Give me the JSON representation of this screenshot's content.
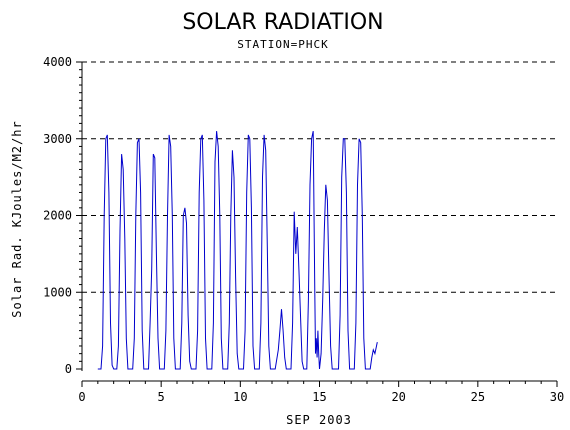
{
  "chart_data": {
    "type": "line",
    "title": "SOLAR RADIATION",
    "subtitle": "STATION=PHCK",
    "xlabel": "SEP 2003",
    "ylabel": "Solar Rad. KJoules/M2/hr",
    "xlim": [
      0,
      30
    ],
    "ylim": [
      0,
      4000
    ],
    "x_ticks": [
      0,
      5,
      10,
      15,
      20,
      25,
      30
    ],
    "x_tick_labels": [
      "0",
      "5",
      "10",
      "15",
      "20",
      "25",
      "30"
    ],
    "y_ticks": [
      0,
      1000,
      2000,
      3000,
      4000
    ],
    "y_tick_labels": [
      "0",
      "1000",
      "2000",
      "3000",
      "4000"
    ],
    "grid": "horizontal dashed",
    "legend": "none",
    "colors": {
      "series": "#0000cc",
      "axis": "#000000",
      "grid": "#000000"
    },
    "series": [
      {
        "values": [
          [
            1.0,
            0
          ],
          [
            1.2,
            0
          ],
          [
            1.3,
            300
          ],
          [
            1.4,
            2000
          ],
          [
            1.5,
            3000
          ],
          [
            1.6,
            3050
          ],
          [
            1.7,
            2300
          ],
          [
            1.8,
            600
          ],
          [
            1.9,
            50
          ],
          [
            2.0,
            0
          ],
          [
            2.2,
            0
          ],
          [
            2.3,
            300
          ],
          [
            2.4,
            1800
          ],
          [
            2.5,
            2800
          ],
          [
            2.6,
            2600
          ],
          [
            2.7,
            1700
          ],
          [
            2.8,
            400
          ],
          [
            2.9,
            0
          ],
          [
            3.2,
            0
          ],
          [
            3.3,
            400
          ],
          [
            3.4,
            2000
          ],
          [
            3.5,
            2950
          ],
          [
            3.6,
            3000
          ],
          [
            3.7,
            2300
          ],
          [
            3.8,
            500
          ],
          [
            3.9,
            0
          ],
          [
            4.2,
            0
          ],
          [
            4.3,
            600
          ],
          [
            4.4,
            1300
          ],
          [
            4.5,
            2800
          ],
          [
            4.6,
            2750
          ],
          [
            4.7,
            1500
          ],
          [
            4.8,
            400
          ],
          [
            4.9,
            0
          ],
          [
            5.2,
            0
          ],
          [
            5.3,
            500
          ],
          [
            5.4,
            2000
          ],
          [
            5.5,
            3050
          ],
          [
            5.6,
            2900
          ],
          [
            5.7,
            2000
          ],
          [
            5.8,
            400
          ],
          [
            5.9,
            0
          ],
          [
            6.2,
            0
          ],
          [
            6.3,
            600
          ],
          [
            6.4,
            2000
          ],
          [
            6.5,
            2100
          ],
          [
            6.6,
            1900
          ],
          [
            6.7,
            700
          ],
          [
            6.8,
            100
          ],
          [
            6.9,
            0
          ],
          [
            7.2,
            0
          ],
          [
            7.3,
            500
          ],
          [
            7.4,
            2300
          ],
          [
            7.5,
            3000
          ],
          [
            7.6,
            3050
          ],
          [
            7.7,
            2200
          ],
          [
            7.8,
            400
          ],
          [
            7.9,
            0
          ],
          [
            8.2,
            0
          ],
          [
            8.3,
            600
          ],
          [
            8.4,
            2700
          ],
          [
            8.5,
            3100
          ],
          [
            8.6,
            2900
          ],
          [
            8.7,
            2000
          ],
          [
            8.8,
            400
          ],
          [
            8.9,
            0
          ],
          [
            9.2,
            0
          ],
          [
            9.3,
            600
          ],
          [
            9.4,
            2000
          ],
          [
            9.5,
            2850
          ],
          [
            9.6,
            2500
          ],
          [
            9.7,
            1200
          ],
          [
            9.8,
            200
          ],
          [
            9.9,
            0
          ],
          [
            10.2,
            0
          ],
          [
            10.3,
            500
          ],
          [
            10.4,
            2300
          ],
          [
            10.5,
            3050
          ],
          [
            10.6,
            3000
          ],
          [
            10.7,
            2100
          ],
          [
            10.8,
            300
          ],
          [
            10.9,
            0
          ],
          [
            11.2,
            0
          ],
          [
            11.3,
            600
          ],
          [
            11.4,
            2500
          ],
          [
            11.5,
            3050
          ],
          [
            11.6,
            2850
          ],
          [
            11.7,
            1600
          ],
          [
            11.8,
            300
          ],
          [
            11.9,
            0
          ],
          [
            12.2,
            0
          ],
          [
            12.4,
            250
          ],
          [
            12.5,
            500
          ],
          [
            12.6,
            780
          ],
          [
            12.7,
            500
          ],
          [
            12.8,
            150
          ],
          [
            12.9,
            0
          ],
          [
            13.2,
            0
          ],
          [
            13.3,
            600
          ],
          [
            13.4,
            2050
          ],
          [
            13.5,
            1500
          ],
          [
            13.6,
            1850
          ],
          [
            13.7,
            1300
          ],
          [
            13.8,
            700
          ],
          [
            13.9,
            100
          ],
          [
            14.0,
            0
          ],
          [
            14.2,
            0
          ],
          [
            14.3,
            900
          ],
          [
            14.4,
            2400
          ],
          [
            14.5,
            3000
          ],
          [
            14.6,
            3100
          ],
          [
            14.7,
            1000
          ],
          [
            14.75,
            200
          ],
          [
            14.8,
            400
          ],
          [
            14.85,
            150
          ],
          [
            14.9,
            500
          ],
          [
            14.95,
            200
          ],
          [
            15.0,
            0
          ],
          [
            15.1,
            200
          ],
          [
            15.2,
            900
          ],
          [
            15.3,
            1800
          ],
          [
            15.4,
            2400
          ],
          [
            15.5,
            2200
          ],
          [
            15.6,
            1200
          ],
          [
            15.7,
            300
          ],
          [
            15.8,
            0
          ],
          [
            16.2,
            0
          ],
          [
            16.3,
            700
          ],
          [
            16.4,
            2500
          ],
          [
            16.5,
            3000
          ],
          [
            16.6,
            3000
          ],
          [
            16.7,
            2300
          ],
          [
            16.8,
            500
          ],
          [
            16.9,
            0
          ],
          [
            17.2,
            0
          ],
          [
            17.3,
            600
          ],
          [
            17.4,
            2400
          ],
          [
            17.5,
            3000
          ],
          [
            17.6,
            2950
          ],
          [
            17.7,
            2000
          ],
          [
            17.8,
            400
          ],
          [
            17.9,
            0
          ],
          [
            18.2,
            0
          ],
          [
            18.3,
            150
          ],
          [
            18.4,
            250
          ],
          [
            18.5,
            200
          ],
          [
            18.6,
            300
          ],
          [
            18.65,
            350
          ]
        ]
      }
    ]
  }
}
